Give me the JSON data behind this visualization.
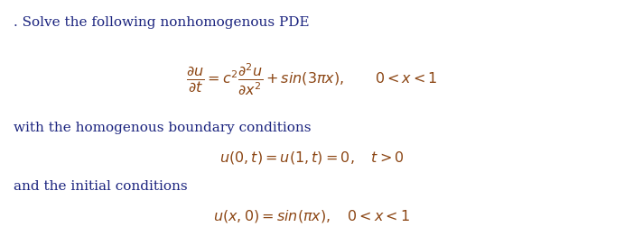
{
  "bg_color": "#ffffff",
  "text_color": "#1a237e",
  "math_color": "#8B4513",
  "title_text": ". Solve the following nonhomogenous PDE",
  "bc_text": "with the homogenous boundary conditions",
  "ic_text": "and the initial conditions",
  "fig_width": 6.91,
  "fig_height": 2.52,
  "dpi": 100
}
